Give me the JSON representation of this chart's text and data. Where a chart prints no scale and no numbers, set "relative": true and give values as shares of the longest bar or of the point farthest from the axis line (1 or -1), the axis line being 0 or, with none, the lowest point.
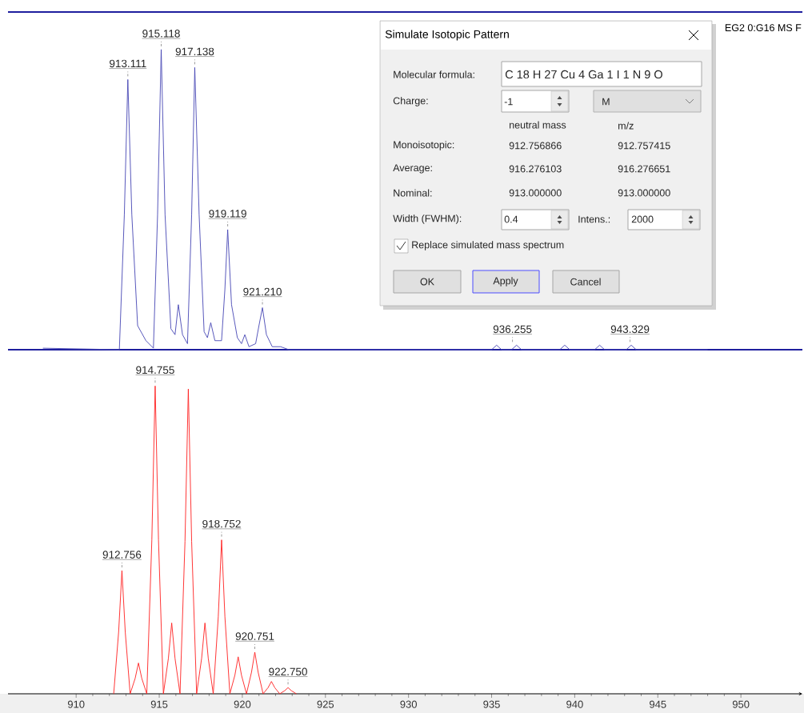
{
  "chart_data": [
    {
      "type": "line",
      "relative": true,
      "color": "#4646b4",
      "xlim": [
        905.9,
        953.7
      ],
      "tick_labels": false,
      "x": [
        908.0,
        912.6,
        912.9,
        913.111,
        913.35,
        913.7,
        914.2,
        914.65,
        914.9,
        915.118,
        915.35,
        915.7,
        915.95,
        916.15,
        916.4,
        916.7,
        916.95,
        917.138,
        917.4,
        917.7,
        917.9,
        918.1,
        918.35,
        918.75,
        918.95,
        919.119,
        919.35,
        919.7,
        919.95,
        920.15,
        920.4,
        920.8,
        921.0,
        921.21,
        921.45,
        921.8,
        922.3,
        922.8,
        935.0,
        935.3,
        935.6,
        936.2,
        936.5,
        936.8,
        939.1,
        939.4,
        939.7,
        941.2,
        941.5,
        941.8,
        943.1,
        943.4,
        943.7,
        948.0
      ],
      "values": [
        0.005,
        0,
        0.45,
        0.9,
        0.45,
        0.08,
        0.03,
        0.005,
        0.45,
        1,
        0.45,
        0.07,
        0.05,
        0.15,
        0.05,
        0.02,
        0.45,
        0.94,
        0.45,
        0.06,
        0.04,
        0.09,
        0.03,
        0.03,
        0.2,
        0.4,
        0.15,
        0.04,
        0.02,
        0.05,
        0.01,
        0.02,
        0.08,
        0.14,
        0.05,
        0.01,
        0.01,
        0,
        0,
        0.015,
        0,
        0,
        0.015,
        0,
        0,
        0.015,
        0,
        0,
        0.015,
        0,
        0,
        0.015,
        0,
        0
      ],
      "annotations": [
        {
          "text": "913.111",
          "x": 913.111,
          "y": 0.9
        },
        {
          "text": "915.118",
          "x": 915.118,
          "y": 1
        },
        {
          "text": "917.138",
          "x": 917.138,
          "y": 0.94
        },
        {
          "text": "919.119",
          "x": 919.119,
          "y": 0.4
        },
        {
          "text": "921.210",
          "x": 921.21,
          "y": 0.14
        },
        {
          "text": "936.255",
          "x": 936.255,
          "y": 0.015
        },
        {
          "text": "943.329",
          "x": 943.329,
          "y": 0.015
        },
        "EG2 0:G16 MS F"
      ]
    },
    {
      "type": "line",
      "relative": true,
      "color": "#ff2020",
      "xlim": [
        905.9,
        953.7
      ],
      "tick_labels": "x",
      "xticks": [
        910,
        915,
        920,
        925,
        930,
        935,
        940,
        945,
        950
      ],
      "x": [
        912.26,
        912.556,
        912.756,
        912.956,
        913.25,
        913.55,
        913.75,
        913.95,
        914.25,
        914.555,
        914.755,
        914.955,
        915.25,
        915.55,
        915.75,
        915.95,
        916.25,
        916.55,
        916.75,
        916.95,
        917.25,
        917.55,
        917.75,
        917.95,
        918.25,
        918.552,
        918.752,
        918.952,
        919.25,
        919.55,
        919.75,
        919.95,
        920.25,
        920.551,
        920.751,
        920.951,
        921.25,
        921.55,
        921.75,
        921.95,
        922.25,
        922.55,
        922.75,
        922.95,
        923.25
      ],
      "values": [
        0,
        0.2,
        0.4,
        0.2,
        0,
        0.05,
        0.1,
        0.05,
        0,
        0.5,
        1,
        0.5,
        0,
        0.115,
        0.23,
        0.115,
        0,
        0.495,
        0.99,
        0.495,
        0,
        0.115,
        0.23,
        0.115,
        0,
        0.25,
        0.5,
        0.25,
        0,
        0.06,
        0.12,
        0.06,
        0,
        0.07,
        0.135,
        0.07,
        0,
        0.02,
        0.04,
        0.02,
        0,
        0.01,
        0.02,
        0.01,
        0
      ],
      "annotations": [
        {
          "text": "912.756",
          "x": 912.756,
          "y": 0.4
        },
        {
          "text": "914.755",
          "x": 914.755,
          "y": 1
        },
        {
          "text": "918.752",
          "x": 918.752,
          "y": 0.5
        },
        {
          "text": "920.751",
          "x": 920.751,
          "y": 0.135
        },
        {
          "text": "922.750",
          "x": 922.75,
          "y": 0.02
        }
      ]
    },
    {
      "type": "other",
      "title": "Simulate Isotopic Pattern",
      "annotations": [
        "Molecular formula:",
        "C 18 H 27 Cu 4 Ga 1 I 1 N 9 O",
        "Charge:",
        "-1",
        "M",
        "neutral mass",
        "m/z",
        "Monoisotopic:",
        "912.756866",
        "912.757415",
        "Average:",
        "916.276103",
        "916.276651",
        "Nominal:",
        "913.000000",
        "913.000000",
        "Width (FWHM):",
        "0.4",
        "Intens.:",
        "2000",
        "Replace simulated mass spectrum",
        "OK",
        "Apply",
        "Cancel"
      ]
    }
  ]
}
